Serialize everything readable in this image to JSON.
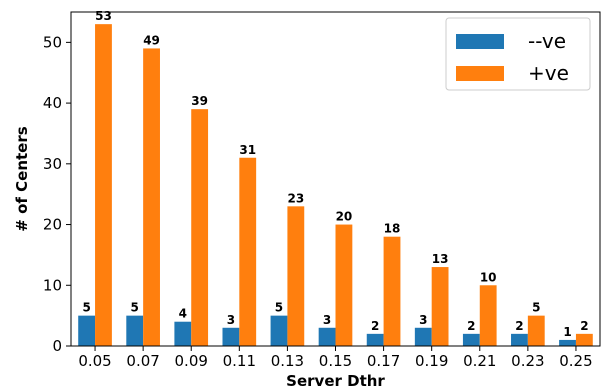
{
  "chart_data": {
    "type": "bar",
    "xlabel": "Server Dthr",
    "ylabel": "# of Centers",
    "categories": [
      "0.05",
      "0.07",
      "0.09",
      "0.11",
      "0.13",
      "0.15",
      "0.17",
      "0.19",
      "0.21",
      "0.23",
      "0.25"
    ],
    "series": [
      {
        "name": "--ve",
        "color": "#1f77b4",
        "values": [
          5,
          5,
          4,
          3,
          5,
          3,
          2,
          3,
          2,
          2,
          1
        ]
      },
      {
        "name": "+ve",
        "color": "#ff7f0e",
        "values": [
          53,
          49,
          39,
          31,
          23,
          20,
          18,
          13,
          10,
          5,
          2
        ]
      }
    ],
    "ylim": [
      0,
      55
    ],
    "yticks": [
      0,
      10,
      20,
      30,
      40,
      50
    ],
    "grid": false,
    "legend_position": "top-right",
    "data_labels": true
  }
}
